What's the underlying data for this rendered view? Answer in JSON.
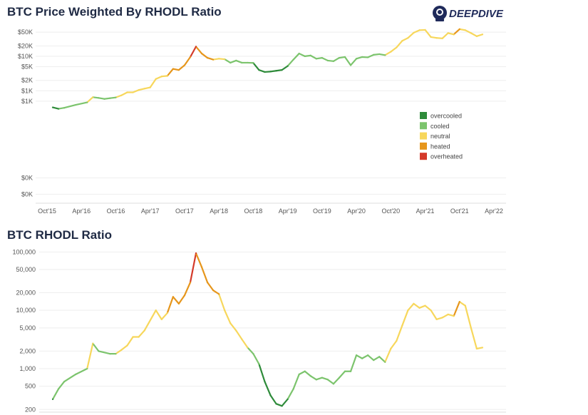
{
  "brand": {
    "logo_text": "DEEPDIVE",
    "logo_color": "#1f2a5a"
  },
  "category_colors": {
    "overcooled": "#2e8b3a",
    "cooled": "#7cc46d",
    "neutral": "#f7d75c",
    "heated": "#e6961c",
    "overheated": "#d43a2a"
  },
  "chart_data": [
    {
      "id": "price",
      "type": "line",
      "title": "BTC Price Weighted By RHODL Ratio",
      "log_scale": true,
      "ylim": [
        0.55,
        70000
      ],
      "grid": true,
      "legend_position": "right",
      "x_ticks": [
        "Oct'15",
        "Apr'16",
        "Oct'16",
        "Apr'17",
        "Oct'17",
        "Apr'18",
        "Oct'18",
        "Apr'19",
        "Oct'19",
        "Apr'20",
        "Oct'20",
        "Apr'21",
        "Oct'21",
        "Apr'22"
      ],
      "x_range": [
        "Oct'15",
        "Apr'22"
      ],
      "y_ticks": [
        {
          "value": 50000,
          "label": "$50K"
        },
        {
          "value": 20000,
          "label": "$20K"
        },
        {
          "value": 10000,
          "label": "$10K"
        },
        {
          "value": 5000,
          "label": "$5K"
        },
        {
          "value": 2000,
          "label": "$2K"
        },
        {
          "value": 1000,
          "label": "$1K"
        },
        {
          "value": 500,
          "label": "$1K"
        },
        {
          "value": 3,
          "label": "$0K"
        },
        {
          "value": 1,
          "label": "$0K"
        }
      ],
      "legend": [
        {
          "key": "overcooled",
          "label": "overcooled"
        },
        {
          "key": "cooled",
          "label": "cooled"
        },
        {
          "key": "neutral",
          "label": "neutral"
        },
        {
          "key": "heated",
          "label": "heated"
        },
        {
          "key": "overheated",
          "label": "overheated"
        }
      ],
      "series": [
        {
          "x": "2015-11",
          "y": 330,
          "cat": "overcooled"
        },
        {
          "x": "2015-12",
          "y": 300,
          "cat": "overcooled"
        },
        {
          "x": "2016-01",
          "y": 320,
          "cat": "cooled"
        },
        {
          "x": "2016-03",
          "y": 390,
          "cat": "cooled"
        },
        {
          "x": "2016-05",
          "y": 460,
          "cat": "cooled"
        },
        {
          "x": "2016-06",
          "y": 650,
          "cat": "neutral"
        },
        {
          "x": "2016-07",
          "y": 620,
          "cat": "cooled"
        },
        {
          "x": "2016-08",
          "y": 580,
          "cat": "cooled"
        },
        {
          "x": "2016-09",
          "y": 610,
          "cat": "cooled"
        },
        {
          "x": "2016-10",
          "y": 640,
          "cat": "cooled"
        },
        {
          "x": "2016-11",
          "y": 740,
          "cat": "neutral"
        },
        {
          "x": "2016-12",
          "y": 900,
          "cat": "neutral"
        },
        {
          "x": "2017-01",
          "y": 900,
          "cat": "neutral"
        },
        {
          "x": "2017-02",
          "y": 1050,
          "cat": "neutral"
        },
        {
          "x": "2017-03",
          "y": 1150,
          "cat": "neutral"
        },
        {
          "x": "2017-04",
          "y": 1250,
          "cat": "neutral"
        },
        {
          "x": "2017-05",
          "y": 2200,
          "cat": "neutral"
        },
        {
          "x": "2017-06",
          "y": 2600,
          "cat": "neutral"
        },
        {
          "x": "2017-07",
          "y": 2700,
          "cat": "neutral"
        },
        {
          "x": "2017-08",
          "y": 4300,
          "cat": "heated"
        },
        {
          "x": "2017-09",
          "y": 4000,
          "cat": "heated"
        },
        {
          "x": "2017-10",
          "y": 5500,
          "cat": "heated"
        },
        {
          "x": "2017-11",
          "y": 9500,
          "cat": "heated"
        },
        {
          "x": "2017-12",
          "y": 19000,
          "cat": "overheated"
        },
        {
          "x": "2018-01",
          "y": 12000,
          "cat": "heated"
        },
        {
          "x": "2018-02",
          "y": 9000,
          "cat": "heated"
        },
        {
          "x": "2018-03",
          "y": 8000,
          "cat": "heated"
        },
        {
          "x": "2018-04",
          "y": 8500,
          "cat": "neutral"
        },
        {
          "x": "2018-05",
          "y": 8200,
          "cat": "neutral"
        },
        {
          "x": "2018-06",
          "y": 6500,
          "cat": "cooled"
        },
        {
          "x": "2018-07",
          "y": 7500,
          "cat": "cooled"
        },
        {
          "x": "2018-08",
          "y": 6500,
          "cat": "cooled"
        },
        {
          "x": "2018-09",
          "y": 6500,
          "cat": "cooled"
        },
        {
          "x": "2018-10",
          "y": 6400,
          "cat": "cooled"
        },
        {
          "x": "2018-11",
          "y": 4000,
          "cat": "overcooled"
        },
        {
          "x": "2018-12",
          "y": 3500,
          "cat": "overcooled"
        },
        {
          "x": "2019-01",
          "y": 3600,
          "cat": "overcooled"
        },
        {
          "x": "2019-02",
          "y": 3800,
          "cat": "overcooled"
        },
        {
          "x": "2019-03",
          "y": 4000,
          "cat": "overcooled"
        },
        {
          "x": "2019-04",
          "y": 5200,
          "cat": "overcooled"
        },
        {
          "x": "2019-05",
          "y": 8000,
          "cat": "cooled"
        },
        {
          "x": "2019-06",
          "y": 12000,
          "cat": "cooled"
        },
        {
          "x": "2019-07",
          "y": 10000,
          "cat": "cooled"
        },
        {
          "x": "2019-08",
          "y": 10500,
          "cat": "cooled"
        },
        {
          "x": "2019-09",
          "y": 8500,
          "cat": "cooled"
        },
        {
          "x": "2019-10",
          "y": 9000,
          "cat": "cooled"
        },
        {
          "x": "2019-11",
          "y": 7500,
          "cat": "cooled"
        },
        {
          "x": "2019-12",
          "y": 7200,
          "cat": "cooled"
        },
        {
          "x": "2020-01",
          "y": 9000,
          "cat": "cooled"
        },
        {
          "x": "2020-02",
          "y": 9500,
          "cat": "cooled"
        },
        {
          "x": "2020-03",
          "y": 5500,
          "cat": "cooled"
        },
        {
          "x": "2020-04",
          "y": 8500,
          "cat": "cooled"
        },
        {
          "x": "2020-05",
          "y": 9500,
          "cat": "cooled"
        },
        {
          "x": "2020-06",
          "y": 9300,
          "cat": "cooled"
        },
        {
          "x": "2020-07",
          "y": 11000,
          "cat": "cooled"
        },
        {
          "x": "2020-08",
          "y": 11500,
          "cat": "cooled"
        },
        {
          "x": "2020-09",
          "y": 10800,
          "cat": "cooled"
        },
        {
          "x": "2020-10",
          "y": 13500,
          "cat": "neutral"
        },
        {
          "x": "2020-11",
          "y": 18000,
          "cat": "neutral"
        },
        {
          "x": "2020-12",
          "y": 28000,
          "cat": "neutral"
        },
        {
          "x": "2021-01",
          "y": 34000,
          "cat": "neutral"
        },
        {
          "x": "2021-02",
          "y": 48000,
          "cat": "neutral"
        },
        {
          "x": "2021-03",
          "y": 57000,
          "cat": "neutral"
        },
        {
          "x": "2021-04",
          "y": 58000,
          "cat": "neutral"
        },
        {
          "x": "2021-05",
          "y": 36000,
          "cat": "neutral"
        },
        {
          "x": "2021-06",
          "y": 34000,
          "cat": "neutral"
        },
        {
          "x": "2021-07",
          "y": 33000,
          "cat": "neutral"
        },
        {
          "x": "2021-08",
          "y": 47000,
          "cat": "neutral"
        },
        {
          "x": "2021-09",
          "y": 43000,
          "cat": "neutral"
        },
        {
          "x": "2021-10",
          "y": 61000,
          "cat": "heated"
        },
        {
          "x": "2021-11",
          "y": 57000,
          "cat": "neutral"
        },
        {
          "x": "2021-12",
          "y": 47000,
          "cat": "neutral"
        },
        {
          "x": "2022-01",
          "y": 38000,
          "cat": "neutral"
        },
        {
          "x": "2022-02",
          "y": 43000,
          "cat": "neutral"
        }
      ]
    },
    {
      "id": "rhodl",
      "type": "line",
      "title": "BTC RHODL Ratio",
      "log_scale": true,
      "ylim": [
        180,
        130000
      ],
      "grid": true,
      "y_ticks": [
        {
          "value": 100000,
          "label": "100,000"
        },
        {
          "value": 50000,
          "label": "50,000"
        },
        {
          "value": 20000,
          "label": "20,000"
        },
        {
          "value": 10000,
          "label": "10,000"
        },
        {
          "value": 5000,
          "label": "5,000"
        },
        {
          "value": 2000,
          "label": "2,000"
        },
        {
          "value": 1000,
          "label": "1,000"
        },
        {
          "value": 500,
          "label": "500"
        },
        {
          "value": 200,
          "label": "200"
        }
      ],
      "series": [
        {
          "x": "2015-11",
          "y": 300,
          "cat": "overcooled"
        },
        {
          "x": "2015-12",
          "y": 450,
          "cat": "cooled"
        },
        {
          "x": "2016-01",
          "y": 600,
          "cat": "cooled"
        },
        {
          "x": "2016-03",
          "y": 800,
          "cat": "cooled"
        },
        {
          "x": "2016-05",
          "y": 1000,
          "cat": "cooled"
        },
        {
          "x": "2016-06",
          "y": 2700,
          "cat": "neutral"
        },
        {
          "x": "2016-07",
          "y": 2000,
          "cat": "cooled"
        },
        {
          "x": "2016-09",
          "y": 1800,
          "cat": "cooled"
        },
        {
          "x": "2016-10",
          "y": 1800,
          "cat": "cooled"
        },
        {
          "x": "2016-11",
          "y": 2100,
          "cat": "neutral"
        },
        {
          "x": "2016-12",
          "y": 2500,
          "cat": "neutral"
        },
        {
          "x": "2017-01",
          "y": 3500,
          "cat": "neutral"
        },
        {
          "x": "2017-02",
          "y": 3500,
          "cat": "neutral"
        },
        {
          "x": "2017-03",
          "y": 4500,
          "cat": "neutral"
        },
        {
          "x": "2017-05",
          "y": 10000,
          "cat": "neutral"
        },
        {
          "x": "2017-06",
          "y": 7000,
          "cat": "neutral"
        },
        {
          "x": "2017-07",
          "y": 9000,
          "cat": "neutral"
        },
        {
          "x": "2017-08",
          "y": 17000,
          "cat": "heated"
        },
        {
          "x": "2017-09",
          "y": 13000,
          "cat": "heated"
        },
        {
          "x": "2017-10",
          "y": 18000,
          "cat": "heated"
        },
        {
          "x": "2017-11",
          "y": 30000,
          "cat": "heated"
        },
        {
          "x": "2017-12",
          "y": 95000,
          "cat": "overheated"
        },
        {
          "x": "2018-01",
          "y": 55000,
          "cat": "heated"
        },
        {
          "x": "2018-02",
          "y": 30000,
          "cat": "heated"
        },
        {
          "x": "2018-03",
          "y": 22000,
          "cat": "heated"
        },
        {
          "x": "2018-04",
          "y": 19000,
          "cat": "heated"
        },
        {
          "x": "2018-05",
          "y": 10000,
          "cat": "neutral"
        },
        {
          "x": "2018-06",
          "y": 6000,
          "cat": "neutral"
        },
        {
          "x": "2018-07",
          "y": 4500,
          "cat": "neutral"
        },
        {
          "x": "2018-08",
          "y": 3200,
          "cat": "neutral"
        },
        {
          "x": "2018-09",
          "y": 2300,
          "cat": "neutral"
        },
        {
          "x": "2018-10",
          "y": 1800,
          "cat": "cooled"
        },
        {
          "x": "2018-11",
          "y": 1200,
          "cat": "cooled"
        },
        {
          "x": "2018-12",
          "y": 600,
          "cat": "overcooled"
        },
        {
          "x": "2019-01",
          "y": 350,
          "cat": "overcooled"
        },
        {
          "x": "2019-02",
          "y": 250,
          "cat": "overcooled"
        },
        {
          "x": "2019-03",
          "y": 230,
          "cat": "overcooled"
        },
        {
          "x": "2019-04",
          "y": 300,
          "cat": "overcooled"
        },
        {
          "x": "2019-05",
          "y": 450,
          "cat": "cooled"
        },
        {
          "x": "2019-06",
          "y": 800,
          "cat": "cooled"
        },
        {
          "x": "2019-07",
          "y": 900,
          "cat": "cooled"
        },
        {
          "x": "2019-08",
          "y": 750,
          "cat": "cooled"
        },
        {
          "x": "2019-09",
          "y": 650,
          "cat": "cooled"
        },
        {
          "x": "2019-10",
          "y": 700,
          "cat": "cooled"
        },
        {
          "x": "2019-11",
          "y": 650,
          "cat": "cooled"
        },
        {
          "x": "2019-12",
          "y": 550,
          "cat": "cooled"
        },
        {
          "x": "2020-01",
          "y": 700,
          "cat": "cooled"
        },
        {
          "x": "2020-02",
          "y": 900,
          "cat": "cooled"
        },
        {
          "x": "2020-03",
          "y": 900,
          "cat": "cooled"
        },
        {
          "x": "2020-04",
          "y": 1700,
          "cat": "cooled"
        },
        {
          "x": "2020-05",
          "y": 1500,
          "cat": "cooled"
        },
        {
          "x": "2020-06",
          "y": 1700,
          "cat": "cooled"
        },
        {
          "x": "2020-07",
          "y": 1400,
          "cat": "cooled"
        },
        {
          "x": "2020-08",
          "y": 1600,
          "cat": "cooled"
        },
        {
          "x": "2020-09",
          "y": 1300,
          "cat": "cooled"
        },
        {
          "x": "2020-10",
          "y": 2200,
          "cat": "neutral"
        },
        {
          "x": "2020-11",
          "y": 3000,
          "cat": "neutral"
        },
        {
          "x": "2020-12",
          "y": 5500,
          "cat": "neutral"
        },
        {
          "x": "2021-01",
          "y": 10000,
          "cat": "neutral"
        },
        {
          "x": "2021-02",
          "y": 13000,
          "cat": "neutral"
        },
        {
          "x": "2021-03",
          "y": 11000,
          "cat": "neutral"
        },
        {
          "x": "2021-04",
          "y": 12000,
          "cat": "neutral"
        },
        {
          "x": "2021-05",
          "y": 10000,
          "cat": "neutral"
        },
        {
          "x": "2021-06",
          "y": 7000,
          "cat": "neutral"
        },
        {
          "x": "2021-07",
          "y": 7500,
          "cat": "neutral"
        },
        {
          "x": "2021-08",
          "y": 8500,
          "cat": "neutral"
        },
        {
          "x": "2021-09",
          "y": 8000,
          "cat": "neutral"
        },
        {
          "x": "2021-10",
          "y": 14000,
          "cat": "heated"
        },
        {
          "x": "2021-11",
          "y": 12000,
          "cat": "neutral"
        },
        {
          "x": "2021-12",
          "y": 5000,
          "cat": "neutral"
        },
        {
          "x": "2022-01",
          "y": 2200,
          "cat": "neutral"
        },
        {
          "x": "2022-02",
          "y": 2300,
          "cat": "neutral"
        }
      ]
    }
  ]
}
